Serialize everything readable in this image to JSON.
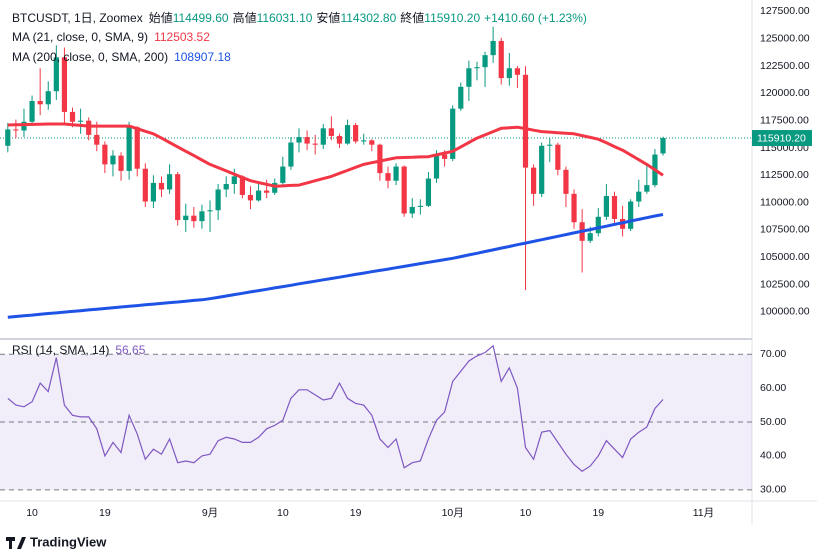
{
  "chart_data": [
    {
      "type": "candlestick",
      "title": "BTCUSDT, 1日, Zoomex",
      "ohlc_legend": [
        {
          "label": "始値",
          "value": "114499.60"
        },
        {
          "label": "高値",
          "value": "116031.10"
        },
        {
          "label": "安値",
          "value": "114302.80"
        },
        {
          "label": "終値",
          "value": "115910.20"
        }
      ],
      "change_text": "+1410.60 (+1.23%)",
      "up_color": "#089981",
      "down_color": "#f23645",
      "categories": [
        null,
        null,
        null,
        "10",
        null,
        null,
        null,
        null,
        null,
        null,
        null,
        null,
        "19",
        null,
        null,
        null,
        null,
        null,
        null,
        null,
        null,
        null,
        null,
        null,
        null,
        "9月",
        null,
        null,
        null,
        null,
        null,
        null,
        null,
        null,
        "10",
        null,
        null,
        null,
        null,
        null,
        null,
        null,
        null,
        "19",
        null,
        null,
        null,
        null,
        null,
        null,
        null,
        null,
        null,
        null,
        null,
        "10月",
        null,
        null,
        null,
        null,
        null,
        null,
        null,
        null,
        "10",
        null,
        null,
        null,
        null,
        null,
        null,
        null,
        null,
        "19",
        null,
        null,
        null,
        null,
        null,
        null,
        null,
        null,
        null,
        null,
        null,
        null,
        "11月",
        null,
        null,
        null,
        null,
        null
      ],
      "open": [
        115200,
        116700,
        116600,
        117400,
        119300,
        119000,
        120200,
        123300,
        118300,
        117400,
        117500,
        116200,
        115300,
        113500,
        114300,
        112900,
        116900,
        113100,
        110100,
        111800,
        111200,
        112600,
        108400,
        108800,
        108300,
        109200,
        109300,
        111200,
        111700,
        112400,
        110700,
        110200,
        111100,
        110900,
        111800,
        113300,
        115500,
        116000,
        115400,
        115300,
        116800,
        116100,
        115400,
        117100,
        115600,
        115700,
        115300,
        112700,
        112000,
        113300,
        109000,
        109600,
        109700,
        112200,
        114400,
        114000,
        118600,
        120600,
        122300,
        122400,
        123500,
        124800,
        121400,
        122300,
        121700,
        113200,
        110800,
        115200,
        115300,
        113000,
        110800,
        108200,
        106500,
        107200,
        108700,
        110600,
        108500,
        107600,
        110100,
        111000,
        111600,
        114499.6,
        null,
        null,
        null,
        null,
        null,
        null,
        null,
        null,
        null,
        null
      ],
      "high": [
        117300,
        117600,
        118600,
        119800,
        122300,
        121100,
        124400,
        124200,
        118700,
        118600,
        117800,
        117400,
        115600,
        114800,
        114600,
        117400,
        117000,
        113600,
        112500,
        112400,
        113500,
        112800,
        109900,
        109600,
        109800,
        110200,
        111700,
        112400,
        113100,
        112500,
        111500,
        111700,
        112100,
        112200,
        114200,
        116000,
        116800,
        116600,
        116200,
        117200,
        117900,
        116300,
        117600,
        117300,
        116300,
        115800,
        115400,
        113300,
        113600,
        113400,
        110400,
        110300,
        112800,
        114800,
        114800,
        118900,
        121000,
        123000,
        122900,
        123800,
        126100,
        125100,
        123700,
        122500,
        122500,
        113500,
        115500,
        115900,
        115500,
        113300,
        111200,
        109400,
        107800,
        109500,
        111700,
        111000,
        109700,
        110300,
        112100,
        113600,
        114900,
        116031.1,
        null,
        null,
        null,
        null,
        null,
        null,
        null,
        null,
        null,
        null
      ],
      "low": [
        114600,
        115900,
        116000,
        117000,
        118000,
        118500,
        119400,
        117200,
        116900,
        116300,
        115700,
        114700,
        112700,
        112400,
        112000,
        112100,
        112400,
        109600,
        109500,
        110500,
        110800,
        107900,
        107300,
        107700,
        107600,
        107300,
        108400,
        110500,
        110800,
        110400,
        109400,
        110100,
        110400,
        110700,
        111400,
        113000,
        114600,
        114800,
        114400,
        114900,
        115700,
        115000,
        115300,
        115400,
        115300,
        114700,
        112000,
        111300,
        111600,
        108700,
        108600,
        108900,
        109600,
        111800,
        113300,
        113800,
        118400,
        119300,
        121200,
        120600,
        122800,
        120800,
        120700,
        120500,
        102000,
        109700,
        110500,
        113700,
        112500,
        109600,
        107600,
        103600,
        106300,
        106900,
        108400,
        108000,
        106900,
        107400,
        109600,
        110800,
        111400,
        114302.8,
        null,
        null,
        null,
        null,
        null,
        null,
        null,
        null,
        null,
        null
      ],
      "close": [
        116700,
        116600,
        117400,
        119300,
        119000,
        120200,
        123300,
        118300,
        117400,
        117500,
        116200,
        115300,
        113500,
        114300,
        112900,
        116900,
        113100,
        110100,
        111800,
        111200,
        112600,
        108400,
        108800,
        108300,
        109200,
        109300,
        111200,
        111700,
        112400,
        110700,
        110200,
        111100,
        110900,
        111800,
        113300,
        115500,
        116000,
        115400,
        115300,
        116800,
        116100,
        115400,
        117100,
        115600,
        115700,
        115300,
        112700,
        112000,
        113300,
        109000,
        109600,
        109700,
        112200,
        114400,
        114000,
        118600,
        120600,
        122300,
        122400,
        123500,
        124800,
        121400,
        122300,
        121700,
        113200,
        110800,
        115200,
        115300,
        113000,
        110800,
        108200,
        106500,
        107200,
        108700,
        110600,
        108500,
        107600,
        110100,
        111000,
        111600,
        114400,
        115910.2,
        null,
        null,
        null,
        null,
        null,
        null,
        null,
        null,
        null,
        null
      ],
      "last_price_label": "115910.20",
      "series": [
        {
          "name": "MA (21, close, 0, SMA, 9)",
          "value_label": "112503.52",
          "color": "#f23645",
          "values": [
            117100,
            117120,
            117140,
            117160,
            117180,
            117200,
            117200,
            117200,
            117130,
            117070,
            117000,
            117000,
            117000,
            117000,
            117000,
            117000,
            116770,
            116530,
            116300,
            115900,
            115500,
            115100,
            114700,
            114300,
            113900,
            113500,
            113200,
            112900,
            112600,
            112300,
            112000,
            111830,
            111670,
            111500,
            111530,
            111570,
            111600,
            111800,
            112000,
            112200,
            112400,
            112680,
            112950,
            113230,
            113500,
            113650,
            113800,
            113950,
            114100,
            114130,
            114150,
            114180,
            114200,
            114370,
            114530,
            114700,
            115100,
            115500,
            115900,
            116200,
            116500,
            116800,
            116850,
            116900,
            116770,
            116630,
            116500,
            116450,
            116400,
            116350,
            116300,
            116130,
            115970,
            115800,
            115470,
            115130,
            114800,
            114370,
            113930,
            113500,
            113000,
            112503.52,
            null,
            null,
            null,
            null,
            null,
            null,
            null,
            null,
            null,
            null
          ]
        },
        {
          "name": "MA (200, close, 0, SMA, 200)",
          "value_label": "108907.18",
          "color": "#1e53e5",
          "values": [
            99500,
            99570,
            99640,
            99700,
            99770,
            99840,
            99900,
            99970,
            100040,
            100100,
            100170,
            100240,
            100300,
            100370,
            100440,
            100500,
            100570,
            100640,
            100700,
            100770,
            100840,
            100900,
            100970,
            101040,
            101100,
            101200,
            101320,
            101450,
            101570,
            101690,
            101820,
            101940,
            102060,
            102190,
            102310,
            102430,
            102560,
            102680,
            102800,
            102930,
            103050,
            103170,
            103300,
            103420,
            103540,
            103670,
            103790,
            103910,
            104040,
            104160,
            104280,
            104410,
            104530,
            104650,
            104780,
            104900,
            105050,
            105210,
            105360,
            105520,
            105670,
            105830,
            105980,
            106140,
            106290,
            106450,
            106600,
            106760,
            106910,
            107070,
            107220,
            107380,
            107530,
            107690,
            107840,
            108000,
            108150,
            108310,
            108460,
            108620,
            108770,
            108907.18,
            null,
            null,
            null,
            null,
            null,
            null,
            null,
            null,
            null,
            null
          ]
        }
      ],
      "ylim": [
        97600,
        128550
      ],
      "yticks": [
        {
          "value": 100000,
          "label": "100000.00"
        },
        {
          "value": 102500,
          "label": "102500.00"
        },
        {
          "value": 105000,
          "label": "105000.00"
        },
        {
          "value": 107500,
          "label": "107500.00"
        },
        {
          "value": 110000,
          "label": "110000.00"
        },
        {
          "value": 112500,
          "label": "112500.00"
        },
        {
          "value": 115000,
          "label": "115000.00"
        },
        {
          "value": 117500,
          "label": "117500.00"
        },
        {
          "value": 120000,
          "label": "120000.00"
        },
        {
          "value": 122500,
          "label": "122500.00"
        },
        {
          "value": 125000,
          "label": "125000.00"
        },
        {
          "value": 127500,
          "label": "127500.00"
        }
      ],
      "grid": false
    },
    {
      "type": "line",
      "title": "RSI (14, SMA, 14)",
      "value_label": "56.65",
      "color": "#7e57c2",
      "values": [
        57,
        55,
        54.5,
        56,
        61.5,
        59,
        69,
        55,
        52,
        51.5,
        51.5,
        48,
        40,
        44,
        41,
        52,
        46.5,
        39,
        42,
        40.5,
        45,
        38,
        38.5,
        38,
        40,
        40.5,
        44.5,
        45.5,
        45,
        44,
        44,
        45.5,
        48,
        49,
        50.5,
        57,
        59.5,
        59.5,
        58,
        56.5,
        57,
        61.5,
        57,
        55.5,
        55,
        52,
        45,
        42.5,
        45,
        36.5,
        38,
        38.5,
        45,
        50.5,
        53,
        62,
        65,
        68,
        69.5,
        70.5,
        72.5,
        62,
        66,
        60,
        42.5,
        39,
        47,
        47.5,
        44,
        40.5,
        37.5,
        35.5,
        37,
        40,
        44.5,
        42,
        39.5,
        45,
        47,
        48.5,
        54,
        56.65,
        null,
        null,
        null,
        null,
        null,
        null,
        null,
        null,
        null,
        null
      ],
      "levels": [
        30,
        50,
        70
      ],
      "ylim": [
        27,
        74.2
      ],
      "yticks": [
        {
          "value": 30,
          "label": "30.00"
        },
        {
          "value": 40,
          "label": "40.00"
        },
        {
          "value": 50,
          "label": "50.00"
        },
        {
          "value": 60,
          "label": "60.00"
        },
        {
          "value": 70,
          "label": "70.00"
        }
      ]
    }
  ],
  "footer": "TradingView"
}
